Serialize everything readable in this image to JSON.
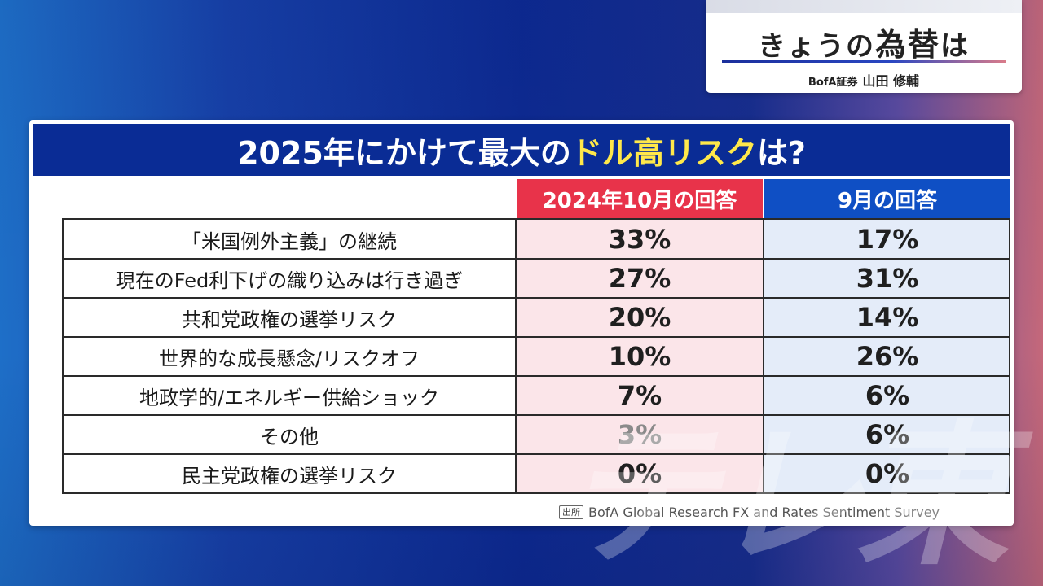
{
  "corner": {
    "title_prefix": "きょうの",
    "title_main": "為替",
    "title_suffix": "は",
    "firm": "BofA証券",
    "person": "山田 修輔"
  },
  "headline": {
    "part1": "2025年にかけて最大の",
    "accent": "ドル高リスク",
    "part2": "は?"
  },
  "chart_data": {
    "type": "table",
    "columns": [
      "2024年10月の回答",
      "9月の回答"
    ],
    "column_colors": [
      "#e8334a",
      "#0f4fc4"
    ],
    "rows": [
      {
        "label": "「米国例外主義」の継続",
        "values": [
          "33%",
          "17%"
        ]
      },
      {
        "label": "現在のFed利下げの織り込みは行き過ぎ",
        "values": [
          "27%",
          "31%"
        ]
      },
      {
        "label": "共和党政権の選挙リスク",
        "values": [
          "20%",
          "14%"
        ]
      },
      {
        "label": "世界的な成長懸念/リスクオフ",
        "values": [
          "10%",
          "26%"
        ]
      },
      {
        "label": "地政学的/エネルギー供給ショック",
        "values": [
          "7%",
          "6%"
        ]
      },
      {
        "label": "その他",
        "values": [
          "3%",
          "6%"
        ]
      },
      {
        "label": "民主党政権の選挙リスク",
        "values": [
          "0%",
          "0%"
        ]
      }
    ]
  },
  "source": {
    "tag": "出所",
    "text": "BofA Global Research FX and Rates Sentiment Survey"
  },
  "watermark": "テレ東"
}
